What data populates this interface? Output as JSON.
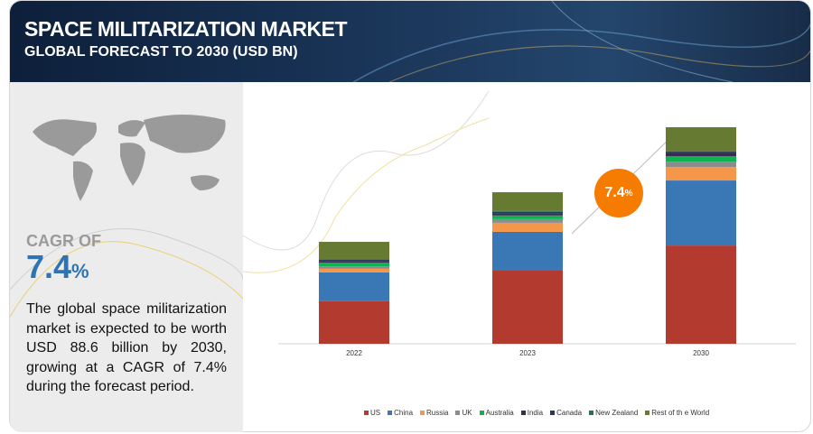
{
  "header": {
    "title": "SPACE MILITARIZATION MARKET",
    "subtitle": "GLOBAL FORECAST TO 2030 (USD BN)"
  },
  "left": {
    "cagr_label": "CAGR OF",
    "cagr_value": "7.4",
    "cagr_unit": "%",
    "description": "The global space militarization market is expected to be worth USD 88.6 billion by 2030, growing at a CAGR of 7.4% during the forecast period."
  },
  "bubble": {
    "value": "7.4",
    "unit": "%"
  },
  "colors": {
    "US": "#b33a2e",
    "China": "#3a78b5",
    "Russia": "#f5974a",
    "UK": "#8c8c8c",
    "Australia": "#10b150",
    "India": "#3d2b4e",
    "Canada": "#233a5e",
    "New Zealand": "#2a6e55",
    "Rest of th e World": "#667a32"
  },
  "chart_data": {
    "type": "bar",
    "stacked": true,
    "title": "Space Militarization Market",
    "xlabel": "",
    "ylabel": "USD BN",
    "categories": [
      "2022",
      "2023",
      "2030"
    ],
    "series": [
      {
        "name": "US",
        "values": [
          17.4,
          29.9,
          40.2
        ]
      },
      {
        "name": "China",
        "values": [
          11.8,
          15.9,
          26.6
        ]
      },
      {
        "name": "Russia",
        "values": [
          1.5,
          3.7,
          5.5
        ]
      },
      {
        "name": "UK",
        "values": [
          1.0,
          1.5,
          2.2
        ]
      },
      {
        "name": "Australia",
        "values": [
          1.5,
          1.5,
          2.2
        ]
      },
      {
        "name": "India",
        "values": [
          0.7,
          0.7,
          1.2
        ]
      },
      {
        "name": "Canada",
        "values": [
          0.5,
          0.8,
          0.7
        ]
      },
      {
        "name": "New Zealand",
        "values": [
          0.3,
          0.3,
          0.3
        ]
      },
      {
        "name": "Rest of th e World",
        "values": [
          7.0,
          7.7,
          9.7
        ]
      }
    ],
    "ylim": [
      0,
      88.6
    ],
    "grid": false,
    "legend": "bottom"
  }
}
